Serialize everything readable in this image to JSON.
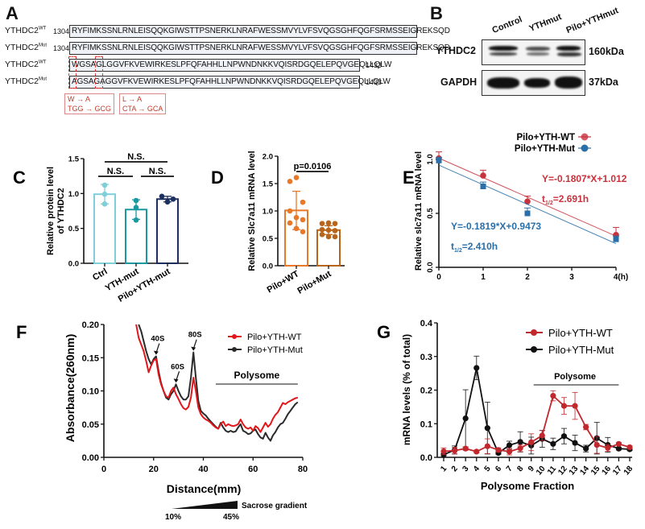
{
  "panels": {
    "A": {
      "label": "A",
      "rows": [
        {
          "name": "YTHDC2",
          "sup": "WT",
          "start": "1304",
          "seq": "RYFIMKSSNLRNLEISQQKGIWSTTPSNERKLNRAFWESSMVYLVFSVQGSGHFQGFSRMSSEIGREKSQD",
          "end": ""
        },
        {
          "name": "YTHDC2",
          "sup": "Mut",
          "start": "1304",
          "seq": "RYFIMKSSNLRNLEISQQKGIWSTTPSNERKLNRAFWESSMVYLVFSVQGSGHFQGFSRMSSEIGREKSQD",
          "end": ""
        },
        {
          "name": "YTHDC2",
          "sup": "WT",
          "start": "",
          "seq": "WGSAGLGGVFKVEWIRKESLPFQFAHHLLNPWNDNKKVQISRDGQELEPQVGEQLLQLW",
          "end": "1433"
        },
        {
          "name": "YTHDC2",
          "sup": "Mut",
          "start": "",
          "seq": "AGSAGAGGVFKVEWIRKESLPFQFAHHLLNPWNDNKKVQISRDGQELEPQVGEQLLQLW",
          "end": "1433"
        }
      ],
      "mutations": [
        {
          "aa": "W → A",
          "codon": "TGG → GCG"
        },
        {
          "aa": "L → A",
          "codon": "CTA → GCA"
        }
      ]
    },
    "B": {
      "label": "B",
      "lanes": [
        "Control",
        "YTHmut",
        "Pilo+YTHmut"
      ],
      "blots": [
        {
          "protein": "YTHDC2",
          "size": "160kDa"
        },
        {
          "protein": "GAPDH",
          "size": "37kDa"
        }
      ]
    }
  },
  "chart_data": [
    {
      "id": "C",
      "type": "bar",
      "title": "",
      "ylabel": "Relative protein level of YTHDC2",
      "ylabel_lines": [
        "Relative protein level",
        "of YTHDC2"
      ],
      "ylim": [
        0,
        1.5
      ],
      "yticks": [
        "0.0",
        "0.5",
        "1.0",
        "1.5"
      ],
      "categories": [
        "Ctrl",
        "YTH-mut",
        "Pilo+YTH-mut"
      ],
      "values": [
        0.99,
        0.77,
        0.92
      ],
      "errors": [
        0.14,
        0.14,
        0.04
      ],
      "points": [
        [
          1.12,
          0.99,
          0.85
        ],
        [
          0.9,
          0.8,
          0.62
        ],
        [
          0.96,
          0.88,
          0.92
        ]
      ],
      "colors": [
        "#7fcfd8",
        "#1a9aa0",
        "#1c2f5e"
      ],
      "annotations": [
        {
          "text": "N.S.",
          "from": 0,
          "to": 2,
          "level": 2
        },
        {
          "text": "N.S.",
          "from": 0,
          "to": 1,
          "level": 1
        },
        {
          "text": "N.S.",
          "from": 1,
          "to": 2,
          "level": 1
        }
      ]
    },
    {
      "id": "D",
      "type": "bar",
      "title": "",
      "ylabel": "Relative Slc7a11 mRNA level",
      "ylim": [
        0,
        2.0
      ],
      "yticks": [
        "0.0",
        "0.5",
        "1.0",
        "1.5",
        "2.0"
      ],
      "categories": [
        "Pilo+WT",
        "Pilo+Mut"
      ],
      "values": [
        1.01,
        0.65
      ],
      "errors": [
        0.35,
        0.08
      ],
      "points": [
        [
          1.54,
          1.61,
          1.16,
          1.0,
          0.88,
          0.84,
          0.78,
          0.68,
          0.62
        ],
        [
          0.77,
          0.78,
          0.77,
          0.66,
          0.65,
          0.64,
          0.57,
          0.53,
          0.53
        ]
      ],
      "colors": [
        "#e8782a",
        "#b8651b"
      ],
      "annotations": [
        {
          "text": "p=0.0106",
          "from": 0,
          "to": 1,
          "level": 1
        }
      ]
    },
    {
      "id": "E",
      "type": "line",
      "title": "",
      "xlabel": "",
      "ylabel": "Relative slc7a11 mRNA level",
      "xlim": [
        0,
        4
      ],
      "ylim": [
        0,
        1.0
      ],
      "xticks": [
        "0",
        "1",
        "2",
        "3",
        "4(h)"
      ],
      "yticks": [
        "0.0",
        "0.5",
        "1.0"
      ],
      "series": [
        {
          "name": "Pilo+YTH-WT",
          "color": "#c8323c",
          "marker": "circle",
          "x": [
            0,
            1,
            2,
            4
          ],
          "y": [
            1.01,
            0.85,
            0.61,
            0.3
          ],
          "err": [
            0.06,
            0.05,
            0.05,
            0.07
          ],
          "fit": {
            "slope": -0.1807,
            "intercept": 1.012
          },
          "equation": "Y=-0.1807*X+1.012",
          "half_life": "=2.691h"
        },
        {
          "name": "Pilo+YTH-Mut",
          "color": "#2a6fa8",
          "marker": "square",
          "x": [
            0,
            1,
            2,
            4
          ],
          "y": [
            0.99,
            0.75,
            0.5,
            0.26
          ],
          "err": [
            0.03,
            0.04,
            0.05,
            0.03
          ],
          "fit": {
            "slope": -0.1819,
            "intercept": 0.9473
          },
          "equation": "Y=-0.1819*X+0.9473",
          "half_life": "=2.410h"
        }
      ],
      "half_life_prefix": "t",
      "half_life_sub": "1/2",
      "legend": "top-right"
    },
    {
      "id": "F",
      "type": "line",
      "title": "",
      "xlabel": "Distance(mm)",
      "ylabel": "Absorbance(260nm)",
      "xlim": [
        0,
        80
      ],
      "ylim": [
        0,
        0.2
      ],
      "xticks": [
        "0",
        "20",
        "40",
        "60",
        "80"
      ],
      "yticks": [
        "0.00",
        "0.05",
        "0.10",
        "0.15",
        "0.20"
      ],
      "series": [
        {
          "name": "Pilo+YTH-WT",
          "color": "#e3161b",
          "x": [
            13,
            14,
            15,
            16,
            17,
            18,
            19,
            20,
            21,
            22,
            23,
            24,
            25,
            26,
            27,
            28,
            29,
            30,
            31,
            32,
            33,
            34,
            35,
            36,
            37,
            38,
            39,
            40,
            41,
            42,
            43,
            44,
            45,
            46,
            47,
            48,
            49,
            50,
            51,
            52,
            53,
            54,
            55,
            56,
            57,
            58,
            59,
            60,
            61,
            62,
            63,
            64,
            65,
            66,
            67,
            68,
            69,
            70,
            71,
            72,
            73,
            74,
            75,
            76,
            77,
            78
          ],
          "y": [
            0.2,
            0.18,
            0.17,
            0.16,
            0.145,
            0.128,
            0.138,
            0.146,
            0.148,
            0.125,
            0.11,
            0.1,
            0.092,
            0.09,
            0.1,
            0.105,
            0.095,
            0.088,
            0.08,
            0.074,
            0.072,
            0.076,
            0.09,
            0.12,
            0.1,
            0.075,
            0.065,
            0.06,
            0.057,
            0.055,
            0.052,
            0.048,
            0.045,
            0.043,
            0.05,
            0.054,
            0.047,
            0.05,
            0.048,
            0.047,
            0.048,
            0.05,
            0.057,
            0.05,
            0.045,
            0.043,
            0.045,
            0.04,
            0.047,
            0.044,
            0.038,
            0.045,
            0.052,
            0.046,
            0.05,
            0.058,
            0.064,
            0.068,
            0.075,
            0.082,
            0.08,
            0.083,
            0.085,
            0.087,
            0.089,
            0.09
          ]
        },
        {
          "name": "Pilo+YTH-Mut",
          "color": "#2a2a2a",
          "x": [
            14,
            15,
            16,
            17,
            18,
            19,
            20,
            21,
            22,
            23,
            24,
            25,
            26,
            27,
            28,
            29,
            30,
            31,
            32,
            33,
            34,
            35,
            36,
            37,
            38,
            39,
            40,
            41,
            42,
            43,
            44,
            45,
            46,
            47,
            48,
            49,
            50,
            51,
            52,
            53,
            54,
            55,
            56,
            57,
            58,
            59,
            60,
            61,
            62,
            63,
            64,
            65,
            66,
            67,
            68,
            69,
            70,
            71,
            72,
            73,
            74,
            75,
            76,
            77,
            78
          ],
          "y": [
            0.2,
            0.19,
            0.175,
            0.16,
            0.148,
            0.14,
            0.148,
            0.152,
            0.13,
            0.112,
            0.1,
            0.09,
            0.087,
            0.095,
            0.1,
            0.11,
            0.1,
            0.092,
            0.087,
            0.087,
            0.092,
            0.12,
            0.158,
            0.12,
            0.085,
            0.07,
            0.066,
            0.063,
            0.058,
            0.054,
            0.05,
            0.046,
            0.043,
            0.052,
            0.045,
            0.04,
            0.038,
            0.04,
            0.038,
            0.039,
            0.045,
            0.05,
            0.04,
            0.038,
            0.035,
            0.036,
            0.04,
            0.042,
            0.035,
            0.03,
            0.028,
            0.037,
            0.03,
            0.025,
            0.033,
            0.038,
            0.045,
            0.05,
            0.052,
            0.058,
            0.065,
            0.07,
            0.075,
            0.08,
            0.083
          ]
        }
      ],
      "annotations": [
        {
          "text": "40S",
          "x": 21,
          "y": 0.152
        },
        {
          "text": "60S",
          "x": 29,
          "y": 0.11
        },
        {
          "text": "80S",
          "x": 36,
          "y": 0.158
        }
      ],
      "region_label": "Polysome",
      "region_x": [
        45,
        78
      ],
      "gradient": {
        "label": "Sacrose gradient",
        "start": "10%",
        "end": "45%"
      },
      "legend": "top-right"
    },
    {
      "id": "G",
      "type": "line",
      "title": "",
      "xlabel": "Polysome Fraction",
      "ylabel": "mRNA levels (% of total)",
      "categories": [
        "1",
        "2",
        "3",
        "4",
        "5",
        "6",
        "7",
        "8",
        "9",
        "10",
        "11",
        "12",
        "13",
        "14",
        "15",
        "16",
        "17",
        "18"
      ],
      "ylim": [
        0,
        0.4
      ],
      "yticks": [
        "0.0",
        "0.1",
        "0.2",
        "0.3",
        "0.4"
      ],
      "series": [
        {
          "name": "Pilo+YTH-WT",
          "color": "#c0282e",
          "y": [
            0.018,
            0.02,
            0.026,
            0.017,
            0.033,
            0.022,
            0.017,
            0.027,
            0.045,
            0.065,
            0.183,
            0.153,
            0.153,
            0.09,
            0.037,
            0.028,
            0.04,
            0.03
          ],
          "err": [
            0.01,
            0.01,
            0.005,
            0.004,
            0.022,
            0.006,
            0.01,
            0.01,
            0.025,
            0.015,
            0.015,
            0.025,
            0.04,
            0.008,
            0.025,
            0.01,
            0.004,
            0.004
          ]
        },
        {
          "name": "Pilo+YTH-Mut",
          "color": "#111111",
          "y": [
            0.008,
            0.022,
            0.116,
            0.266,
            0.087,
            0.013,
            0.036,
            0.046,
            0.035,
            0.055,
            0.04,
            0.063,
            0.043,
            0.026,
            0.057,
            0.037,
            0.026,
            0.024
          ],
          "err": [
            0.004,
            0.012,
            0.085,
            0.035,
            0.077,
            0.004,
            0.012,
            0.03,
            0.025,
            0.025,
            0.017,
            0.023,
            0.023,
            0.01,
            0.047,
            0.022,
            0.004,
            0.004
          ]
        }
      ],
      "region_label": "Polysome",
      "region_from": "9",
      "region_to": "17",
      "legend": "top-right"
    }
  ]
}
